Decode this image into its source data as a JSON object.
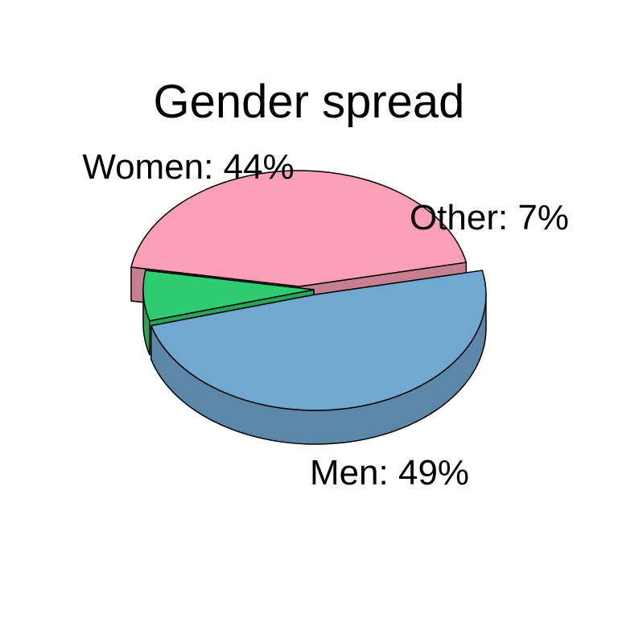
{
  "chart_data": {
    "type": "pie",
    "style": "3d-exploded",
    "title": "Gender spread",
    "slices": [
      {
        "name": "Men",
        "value": 49,
        "label": "Men: 49%",
        "color": "#71a8d0",
        "side_color": "#5b87a8"
      },
      {
        "name": "Other",
        "value": 7,
        "label": "Other: 7%",
        "color": "#2ecc71",
        "side_color": "#25a45a"
      },
      {
        "name": "Women",
        "value": 44,
        "label": "Women: 44%",
        "color": "#fa9fb5",
        "side_color": "#c67f91"
      }
    ]
  }
}
